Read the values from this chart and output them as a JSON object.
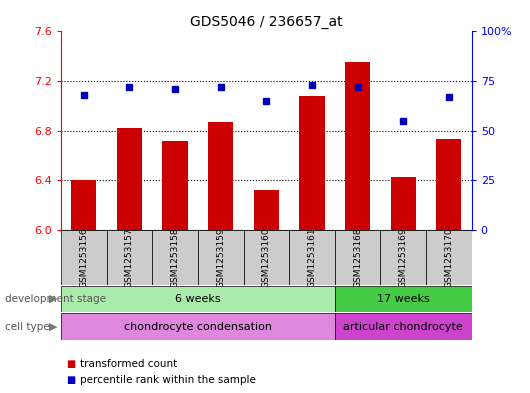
{
  "title": "GDS5046 / 236657_at",
  "samples": [
    "GSM1253156",
    "GSM1253157",
    "GSM1253158",
    "GSM1253159",
    "GSM1253160",
    "GSM1253161",
    "GSM1253168",
    "GSM1253169",
    "GSM1253170"
  ],
  "bar_values": [
    6.4,
    6.82,
    6.72,
    6.87,
    6.32,
    7.08,
    7.35,
    6.43,
    6.73
  ],
  "dot_values": [
    68,
    72,
    71,
    72,
    65,
    73,
    72,
    55,
    67
  ],
  "ylim_left": [
    6.0,
    7.6
  ],
  "ylim_right": [
    0,
    100
  ],
  "yticks_left": [
    6.0,
    6.4,
    6.8,
    7.2,
    7.6
  ],
  "yticks_right": [
    0,
    25,
    50,
    75,
    100
  ],
  "ytick_labels_right": [
    "0",
    "25",
    "50",
    "75",
    "100%"
  ],
  "bar_color": "#cc0000",
  "dot_color": "#0000bb",
  "bar_bottom": 6.0,
  "development_stage_groups": [
    {
      "label": "6 weeks",
      "start": 0,
      "end": 6,
      "color": "#aaeaaa"
    },
    {
      "label": "17 weeks",
      "start": 6,
      "end": 9,
      "color": "#44cc44"
    }
  ],
  "cell_type_groups": [
    {
      "label": "chondrocyte condensation",
      "start": 0,
      "end": 6,
      "color": "#dd88dd"
    },
    {
      "label": "articular chondrocyte",
      "start": 6,
      "end": 9,
      "color": "#cc44cc"
    }
  ],
  "row_label_dev": "development stage",
  "row_label_cell": "cell type",
  "legend_bar_label": "transformed count",
  "legend_dot_label": "percentile rank within the sample",
  "sample_box_color": "#cccccc",
  "plot_bg": "white",
  "fig_bg": "white"
}
